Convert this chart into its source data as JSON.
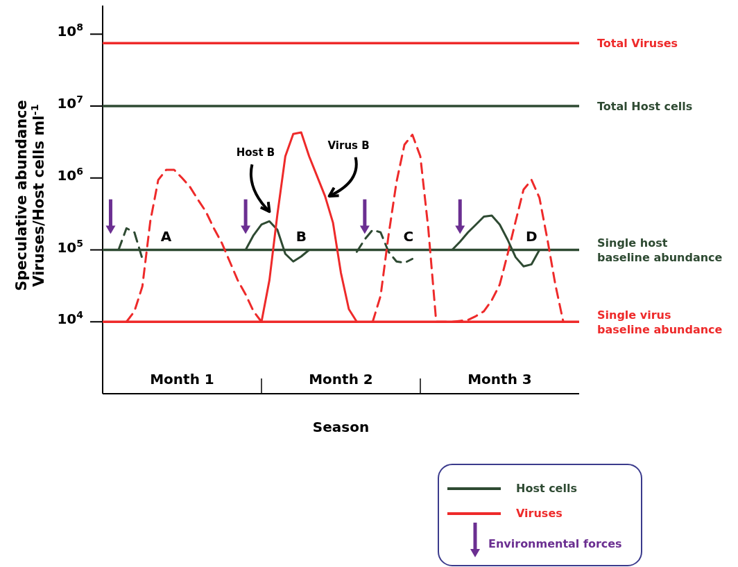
{
  "chart_data": {
    "type": "line",
    "xlabel": "Season",
    "ylabel": "Speculative  abundance\nViruses/Host cells ml$^{-1}$",
    "log": "y",
    "ylim": [
      1000,
      250000000
    ],
    "yticks": [
      {
        "value": 10000,
        "label": "10$^{4}$"
      },
      {
        "value": 100000,
        "label": "10$^{5}$"
      },
      {
        "value": 1000000,
        "label": "10$^{6}$"
      },
      {
        "value": 10000000,
        "label": "10$^{7}$"
      },
      {
        "value": 100000000,
        "label": "10$^{8}$"
      }
    ],
    "categories": [
      null,
      null,
      null,
      null,
      null,
      null,
      null,
      null,
      null,
      null,
      "Month 1",
      null,
      null,
      null,
      null,
      null,
      null,
      null,
      null,
      null,
      null,
      null,
      null,
      null,
      null,
      null,
      null,
      null,
      null,
      null,
      "Month 2",
      null,
      null,
      null,
      null,
      null,
      null,
      null,
      null,
      null,
      null,
      null,
      null,
      null,
      null,
      null,
      null,
      null,
      null,
      null,
      "Month 3",
      null,
      null,
      null,
      null,
      null,
      null,
      null,
      null,
      null,
      null
    ],
    "grid": false,
    "legend": "bottom right",
    "ref_lines": [
      {
        "axis": "y",
        "value": 75000000,
        "label": "Total Viruses",
        "color": "#ee2a2a"
      },
      {
        "axis": "y",
        "value": 10000000,
        "label": "Total Host cells",
        "color": "#2e4a32"
      },
      {
        "axis": "y",
        "value": 100000,
        "label": "Single host\nbaseline abundance",
        "color": "#2e4a32"
      },
      {
        "axis": "y",
        "value": 10000,
        "label": "Single virus\nbaseline abundance",
        "color": "#ee2a2a"
      }
    ],
    "series": [
      {
        "color": "#2e4a32",
        "line_style": "dashed",
        "values": [
          null,
          null,
          100000,
          200000,
          175000,
          75000,
          null,
          null,
          null,
          null,
          null,
          null,
          null,
          null,
          null,
          null,
          null,
          null,
          null,
          null,
          null,
          null,
          null,
          null,
          null,
          null,
          null,
          null,
          null,
          null,
          null,
          null,
          94000,
          140000,
          190000,
          175000,
          94000,
          69000,
          66000,
          75000,
          null,
          null,
          null,
          null,
          null,
          null,
          null,
          null,
          null,
          null,
          null,
          null,
          null,
          null,
          null,
          null,
          null,
          null,
          null,
          null,
          null
        ]
      },
      {
        "color": "#ee2a2a",
        "line_style": "dashed",
        "values": [
          null,
          null,
          null,
          10000,
          14000,
          31000,
          250000,
          940000,
          1300000,
          1300000,
          1000000,
          750000,
          500000,
          340000,
          200000,
          125000,
          69000,
          38000,
          24000,
          14000,
          10000,
          null,
          null,
          null,
          null,
          null,
          null,
          null,
          null,
          null,
          null,
          null,
          null,
          null,
          10000,
          23000,
          160000,
          880000,
          2900000,
          4000000,
          2000000,
          200000,
          10000,
          10000,
          10000,
          10300,
          10600,
          12000,
          14000,
          20000,
          33000,
          88000,
          250000,
          690000,
          940000,
          530000,
          140000,
          33000,
          10000,
          null,
          null
        ]
      },
      {
        "name": "Host cells",
        "color": "#2e4a32",
        "line_style": "solid",
        "values": [
          null,
          null,
          null,
          null,
          null,
          null,
          null,
          null,
          null,
          null,
          null,
          null,
          null,
          null,
          null,
          null,
          null,
          null,
          100000,
          160000,
          225000,
          250000,
          190000,
          88000,
          69000,
          81000,
          100000,
          null,
          null,
          null,
          null,
          null,
          null,
          null,
          null,
          null,
          null,
          null,
          null,
          null,
          null,
          null,
          null,
          null,
          100000,
          130000,
          175000,
          225000,
          290000,
          300000,
          225000,
          138000,
          79000,
          59000,
          63000,
          100000,
          null,
          null,
          null,
          null,
          null
        ]
      },
      {
        "name": "Viruses",
        "color": "#ee2a2a",
        "line_style": "solid",
        "values": [
          null,
          null,
          null,
          null,
          null,
          null,
          null,
          null,
          null,
          null,
          null,
          null,
          null,
          null,
          null,
          null,
          null,
          null,
          null,
          null,
          10000,
          38000,
          310000,
          2000000,
          4100000,
          4300000,
          2000000,
          1060000,
          560000,
          240000,
          48000,
          15000,
          10000,
          null,
          null,
          null,
          null,
          null,
          null,
          null,
          null,
          null,
          null,
          null,
          null,
          null,
          null,
          null,
          null,
          null,
          null,
          null,
          null,
          null,
          null,
          null,
          null,
          null,
          null,
          null,
          null
        ]
      },
      {
        "type": "scatter",
        "name": "Environmental forces",
        "color": "#6b2f91",
        "marker": "triangle",
        "values": [
          null,
          190000,
          null,
          null,
          null,
          null,
          null,
          null,
          null,
          null,
          null,
          null,
          null,
          null,
          null,
          null,
          null,
          null,
          190000,
          null,
          null,
          null,
          null,
          null,
          null,
          null,
          null,
          null,
          null,
          null,
          null,
          null,
          null,
          190000,
          null,
          null,
          null,
          null,
          null,
          null,
          null,
          null,
          null,
          null,
          null,
          190000,
          null,
          null,
          null,
          null,
          null,
          null,
          null,
          null,
          null,
          null,
          null,
          null,
          null,
          null,
          null
        ]
      }
    ],
    "annotations": [
      "A",
      "B",
      "C",
      "D",
      "Host B",
      "Virus B"
    ]
  }
}
